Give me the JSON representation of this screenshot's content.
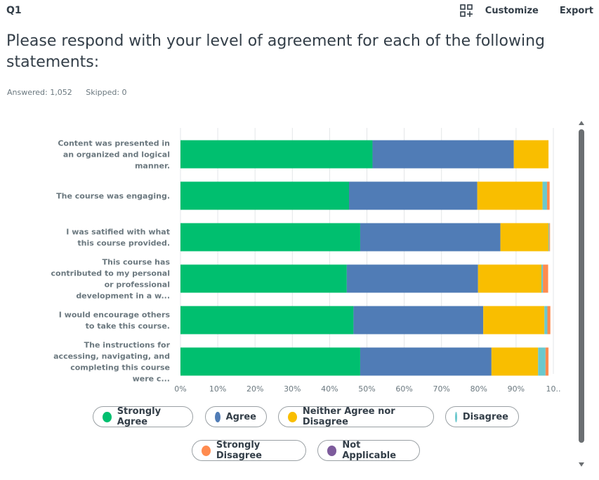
{
  "question_number": "Q1",
  "toolbar": {
    "customize_label": "Customize",
    "export_label": "Export",
    "customize_icon": "grid-plus-icon"
  },
  "title": "Please respond with your level of agreement for each of the following statements:",
  "stats": {
    "answered": "Answered: 1,052",
    "skipped": "Skipped: 0"
  },
  "colors": {
    "Strongly Agree": "#00bf6f",
    "Agree": "#507cb6",
    "Neither Agree nor Disagree": "#f9be00",
    "Disagree": "#6bc8cd",
    "Strongly Disagree": "#ff8b4f",
    "Not Applicable": "#7d5b9c"
  },
  "chart_data": {
    "type": "bar",
    "orientation": "horizontal",
    "stacked": true,
    "grid": true,
    "xlim": [
      0,
      100
    ],
    "x_ticks": [
      "0%",
      "10%",
      "20%",
      "30%",
      "40%",
      "50%",
      "60%",
      "70%",
      "80%",
      "90%",
      "10.."
    ],
    "categories": [
      [
        "Content was presented in",
        "an organized and logical",
        "manner."
      ],
      [
        "The course was engaging."
      ],
      [
        "I was satified with what",
        "this course provided."
      ],
      [
        "This course has",
        "contributed to my personal",
        "or professional",
        "development in a w..."
      ],
      [
        "I would encourage others",
        "to take this course."
      ],
      [
        "The instructions for",
        "accessing, navigating, and",
        "completing this course",
        "were c..."
      ]
    ],
    "series": [
      {
        "name": "Strongly Agree",
        "values": [
          51.5,
          45.2,
          48.2,
          44.6,
          46.4,
          48.2
        ]
      },
      {
        "name": "Agree",
        "values": [
          37.9,
          34.4,
          37.6,
          35.2,
          34.8,
          35.2
        ]
      },
      {
        "name": "Neither Agree nor Disagree",
        "values": [
          9.3,
          17.5,
          12.9,
          17.0,
          16.4,
          12.5
        ]
      },
      {
        "name": "Disagree",
        "values": [
          0.0,
          1.2,
          0.2,
          0.4,
          0.8,
          2.0
        ]
      },
      {
        "name": "Strongly Disagree",
        "values": [
          0.0,
          0.7,
          0.2,
          1.4,
          0.8,
          0.8
        ]
      },
      {
        "name": "Not Applicable",
        "values": [
          0.0,
          0.0,
          0.0,
          0.0,
          0.0,
          0.0
        ]
      }
    ],
    "legend": "bottom"
  }
}
